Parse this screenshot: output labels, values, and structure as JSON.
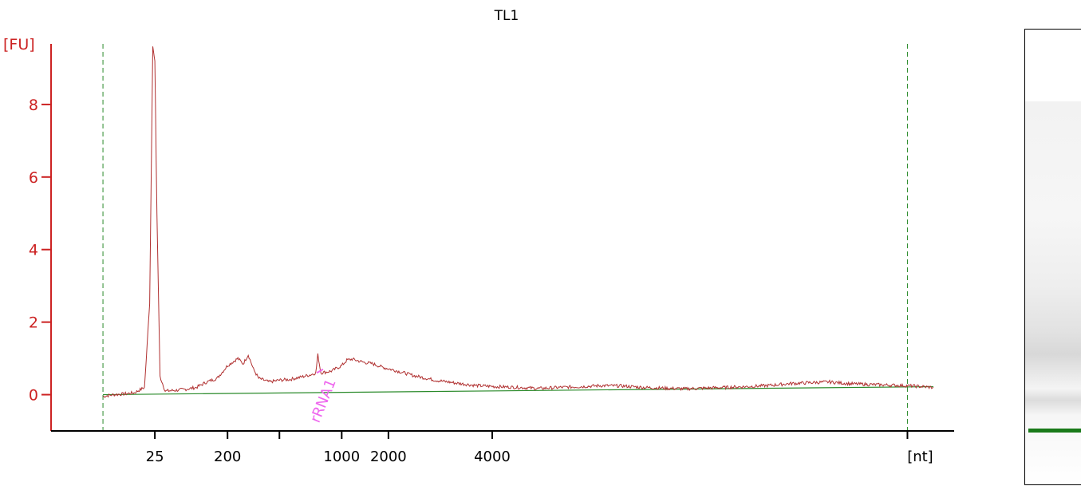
{
  "chart_data": {
    "type": "line",
    "title": "TL1",
    "ylabel": "[FU]",
    "xlabel": "[nt]",
    "ylim": [
      -1,
      10
    ],
    "yticks": [
      0,
      2,
      4,
      6,
      8
    ],
    "xtick_labels": [
      "25",
      "200",
      "",
      "1000",
      "2000",
      "4000"
    ],
    "annotations": [
      "rRNA1"
    ],
    "colors": {
      "y_axis": "#cc2222",
      "trace": "#b03030",
      "baseline": "#2a8a2a",
      "boundary": "#2a8a2a",
      "annotation": "#ee66ee",
      "lower_marker_band": "#1a7a1a"
    },
    "series": [
      {
        "values_note_units": "x in seconds of run (unlabeled axis), y in FU",
        "x": [
          20,
          21,
          22,
          23,
          24,
          24.5,
          24.8,
          25,
          25.2,
          25.5,
          26,
          27,
          28,
          29,
          30,
          31,
          32,
          33,
          33.5,
          34,
          34.5,
          35,
          36,
          37,
          38,
          39,
          40,
          40.5,
          40.7,
          41,
          42,
          43,
          43.5,
          44,
          45,
          46,
          47,
          48,
          49,
          50,
          52,
          54,
          56,
          58,
          60,
          62,
          64,
          66,
          68,
          70,
          72,
          74,
          76,
          78,
          80,
          82,
          84,
          86,
          88,
          90,
          92,
          94,
          96,
          98,
          100
        ],
        "y": [
          -0.05,
          0,
          0.02,
          0.05,
          0.2,
          2.5,
          9.6,
          9.2,
          5,
          0.5,
          0.1,
          0.12,
          0.15,
          0.2,
          0.35,
          0.45,
          0.8,
          1.0,
          0.85,
          1.1,
          0.7,
          0.45,
          0.35,
          0.4,
          0.42,
          0.48,
          0.55,
          0.6,
          1.1,
          0.6,
          0.65,
          0.8,
          0.95,
          0.98,
          0.9,
          0.85,
          0.75,
          0.68,
          0.6,
          0.52,
          0.4,
          0.32,
          0.25,
          0.22,
          0.2,
          0.17,
          0.2,
          0.22,
          0.25,
          0.24,
          0.2,
          0.18,
          0.16,
          0.18,
          0.2,
          0.22,
          0.25,
          0.3,
          0.33,
          0.35,
          0.3,
          0.28,
          0.26,
          0.24,
          0.2
        ]
      },
      {
        "name": "",
        "x": [
          20,
          100
        ],
        "y": [
          0,
          0.22
        ]
      }
    ]
  }
}
